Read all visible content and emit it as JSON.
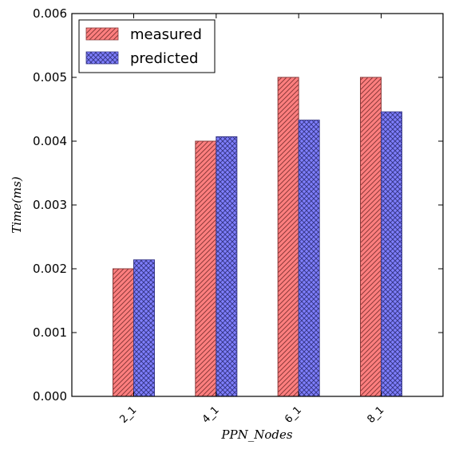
{
  "chart_data": {
    "type": "bar",
    "title": "",
    "xlabel": "PPN_Nodes",
    "ylabel": "Time(ms)",
    "categories": [
      "2_1",
      "4_1",
      "6_1",
      "8_1"
    ],
    "series": [
      {
        "name": "measured",
        "values": [
          0.002,
          0.004,
          0.005,
          0.005
        ],
        "color": "#ff7f7f",
        "hatch": "diagonal"
      },
      {
        "name": "predicted",
        "values": [
          0.00214,
          0.00407,
          0.00433,
          0.00446
        ],
        "color": "#7f7fff",
        "hatch": "crosshatch"
      }
    ],
    "ylim": [
      0,
      0.006
    ],
    "yticks": [
      "0.000",
      "0.001",
      "0.002",
      "0.003",
      "0.004",
      "0.005",
      "0.006"
    ],
    "legend_position": "top-left",
    "grid": false
  }
}
